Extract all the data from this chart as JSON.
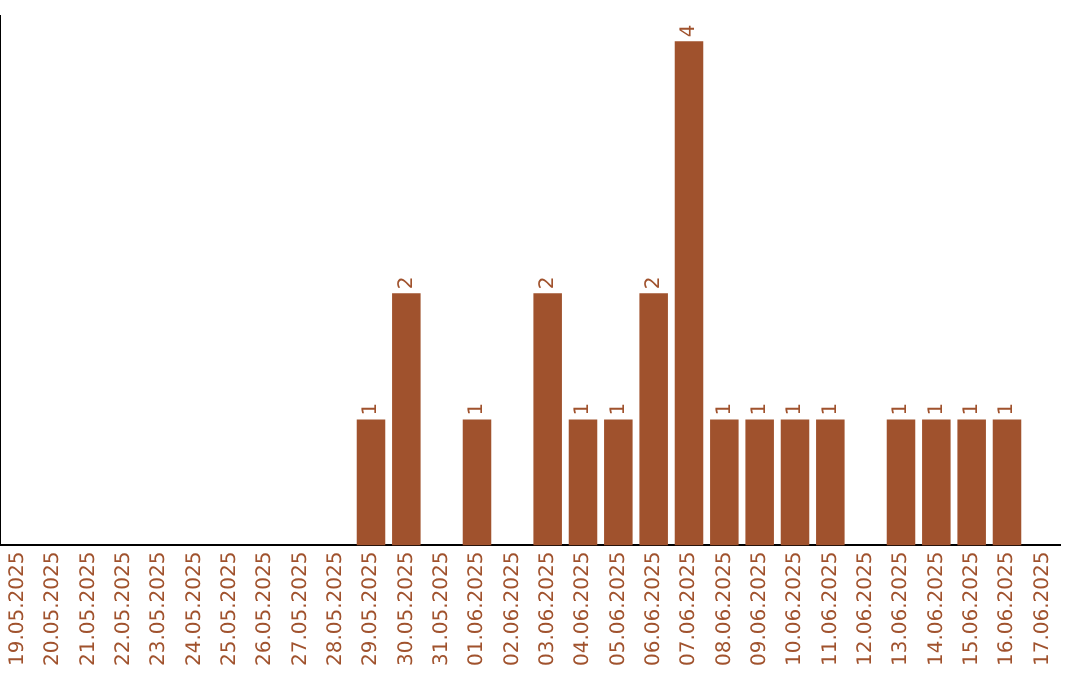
{
  "chart_data": {
    "type": "bar",
    "categories": [
      "19.05.2025",
      "20.05.2025",
      "21.05.2025",
      "22.05.2025",
      "23.05.2025",
      "24.05.2025",
      "25.05.2025",
      "26.05.2025",
      "27.05.2025",
      "28.05.2025",
      "29.05.2025",
      "30.05.2025",
      "31.05.2025",
      "01.06.2025",
      "02.06.2025",
      "03.06.2025",
      "04.06.2025",
      "05.06.2025",
      "06.06.2025",
      "07.06.2025",
      "08.06.2025",
      "09.06.2025",
      "10.06.2025",
      "11.06.2025",
      "12.06.2025",
      "13.06.2025",
      "14.06.2025",
      "15.06.2025",
      "16.06.2025",
      "17.06.2025"
    ],
    "values": [
      0,
      0,
      0,
      0,
      0,
      0,
      0,
      0,
      0,
      0,
      1,
      2,
      0,
      1,
      0,
      2,
      1,
      1,
      2,
      4,
      1,
      1,
      1,
      1,
      0,
      1,
      1,
      1,
      1,
      0
    ],
    "value_labels": [
      null,
      null,
      null,
      null,
      null,
      null,
      null,
      null,
      null,
      null,
      "1",
      "2",
      null,
      "1",
      null,
      "2",
      "1",
      "1",
      "2",
      "4",
      "1",
      "1",
      "1",
      "1",
      null,
      "1",
      "1",
      "1",
      "1",
      null
    ],
    "color": "#a0522d",
    "ylim": [
      0,
      4.2
    ],
    "tick_labels": "x",
    "grid": false,
    "legend": false
  }
}
